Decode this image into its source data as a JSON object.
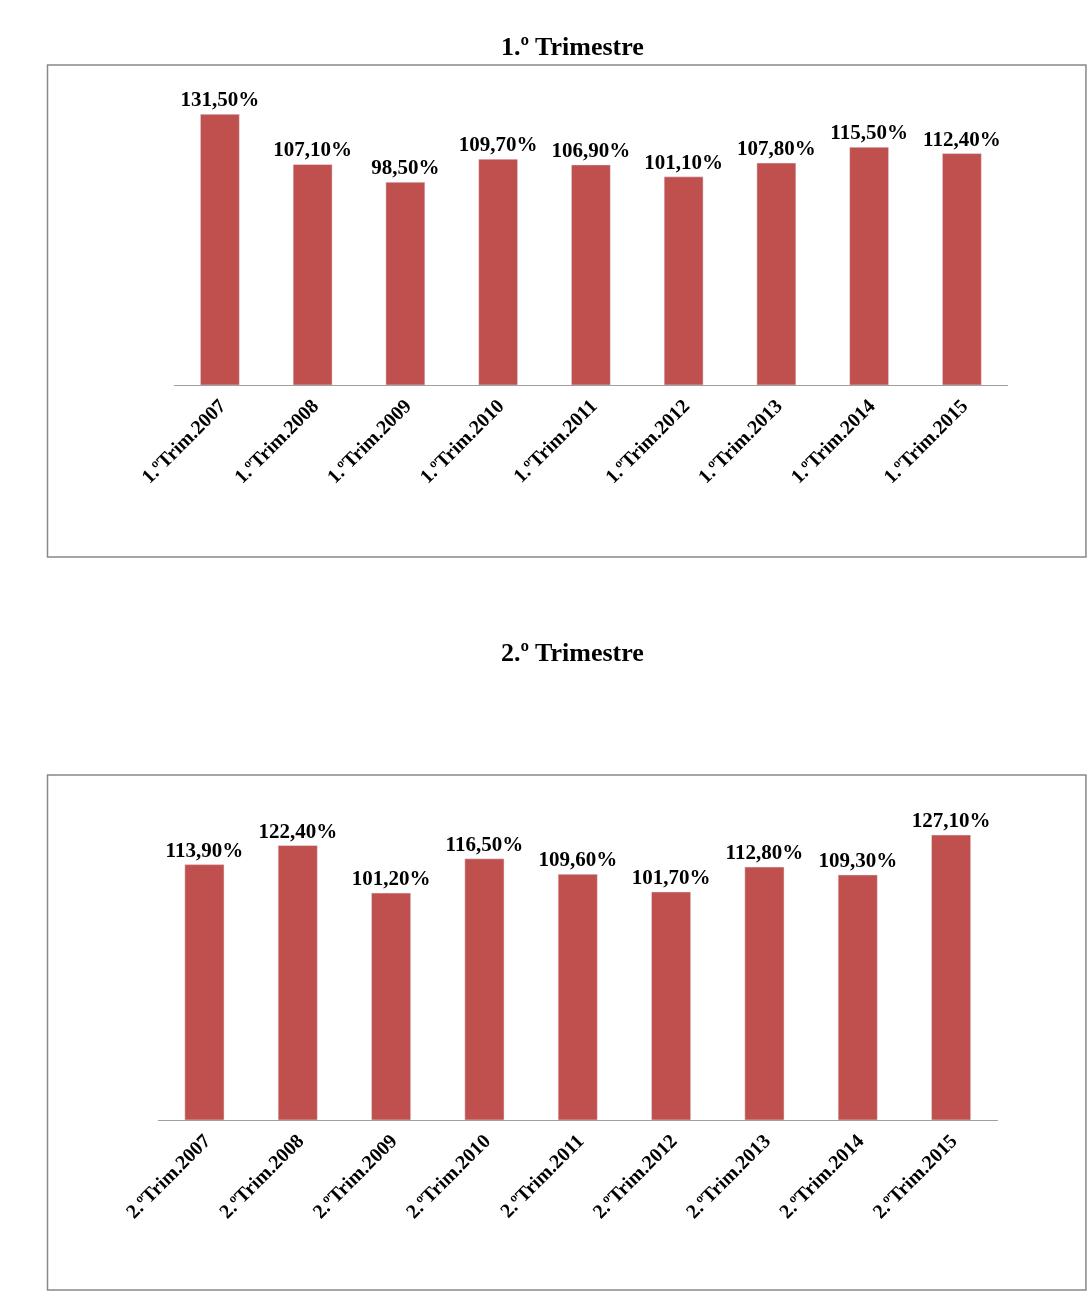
{
  "chart_data": [
    {
      "type": "bar",
      "title": "1.º Trimestre",
      "categories": [
        "1.ºTrim.2007",
        "1.ºTrim.2008",
        "1.ºTrim.2009",
        "1.ºTrim.2010",
        "1.ºTrim.2011",
        "1.ºTrim.2012",
        "1.ºTrim.2013",
        "1.ºTrim.2014",
        "1.ºTrim.2015"
      ],
      "values": [
        131.5,
        107.1,
        98.5,
        109.7,
        106.9,
        101.1,
        107.8,
        115.5,
        112.4
      ],
      "value_labels": [
        "131,50%",
        "107,10%",
        "98,50%",
        "109,70%",
        "106,90%",
        "101,10%",
        "107,80%",
        "115,50%",
        "112,40%"
      ],
      "color": "#c0504d",
      "tick_labels": "x"
    },
    {
      "type": "bar",
      "title": "2.º Trimestre",
      "categories": [
        "2.ºTrim.2007",
        "2.ºTrim.2008",
        "2.ºTrim.2009",
        "2.ºTrim.2010",
        "2.ºTrim.2011",
        "2.ºTrim.2012",
        "2.ºTrim.2013",
        "2.ºTrim.2014",
        "2.ºTrim.2015"
      ],
      "values": [
        113.9,
        122.4,
        101.2,
        116.5,
        109.6,
        101.7,
        112.8,
        109.3,
        127.1
      ],
      "value_labels": [
        "113,90%",
        "122,40%",
        "101,20%",
        "116,50%",
        "109,60%",
        "101,70%",
        "112,80%",
        "109,30%",
        "127,10%"
      ],
      "color": "#c0504d",
      "tick_labels": "x"
    }
  ]
}
